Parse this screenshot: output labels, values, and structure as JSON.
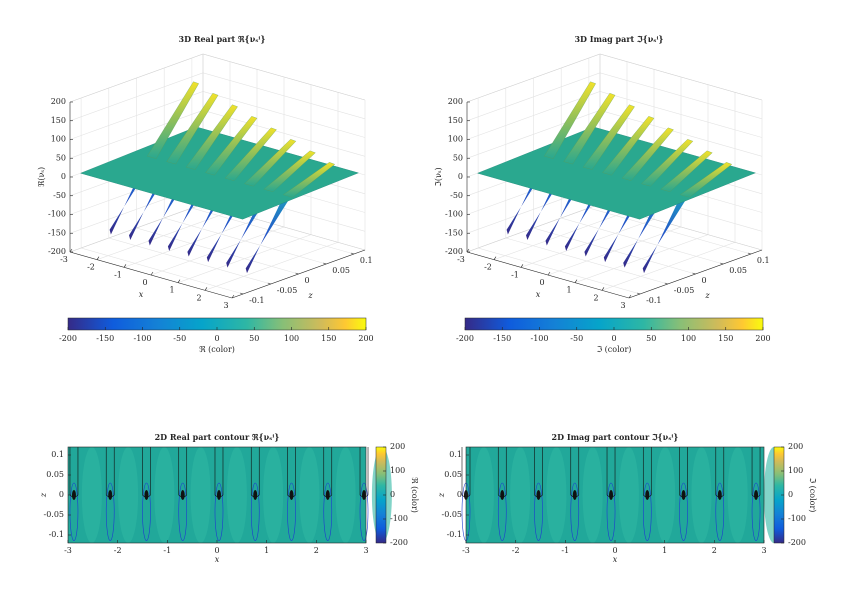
{
  "chart_data": [
    {
      "type": "surface3d",
      "title": "3D Real part ℜ{νₛⁱ}",
      "xlabel": "x",
      "ylabel": "z",
      "zlabel": "ℜ(νₛ)",
      "xlim": [
        -3,
        3
      ],
      "xticks": [
        -3,
        -2,
        -1,
        0,
        1,
        2,
        3
      ],
      "ylim": [
        -0.12,
        0.12
      ],
      "yticks": [
        -0.1,
        -0.05,
        0,
        0.05,
        0.1
      ],
      "zlim": [
        -200,
        200
      ],
      "zticks": [
        -200,
        -150,
        -100,
        -50,
        0,
        50,
        100,
        150,
        200
      ],
      "grid": true,
      "colorbar_label": "ℜ (color)",
      "clim": [
        -200,
        200
      ],
      "cticks": [
        -200,
        -150,
        -100,
        -50,
        0,
        50,
        100,
        150,
        200
      ]
    },
    {
      "type": "surface3d",
      "title": "3D Imag part ℑ{νₛⁱ}",
      "xlabel": "x",
      "ylabel": "z",
      "zlabel": "ℑ(νₛ)",
      "xlim": [
        -3,
        3
      ],
      "xticks": [
        -3,
        -2,
        -1,
        0,
        1,
        2,
        3
      ],
      "ylim": [
        -0.12,
        0.12
      ],
      "yticks": [
        -0.1,
        -0.05,
        0,
        0.05,
        0.1
      ],
      "zlim": [
        -200,
        200
      ],
      "zticks": [
        -200,
        -150,
        -100,
        -50,
        0,
        50,
        100,
        150,
        200
      ],
      "grid": true,
      "colorbar_label": "ℑ (color)",
      "clim": [
        -200,
        200
      ],
      "cticks": [
        -200,
        -150,
        -100,
        -50,
        0,
        50,
        100,
        150,
        200
      ]
    },
    {
      "type": "contour",
      "title": "2D Real part contour ℜ{νₛⁱ}",
      "xlabel": "x",
      "ylabel": "z",
      "xlim": [
        -3,
        3
      ],
      "xticks": [
        -3,
        -2,
        -1,
        0,
        1,
        2,
        3
      ],
      "ylim": [
        -0.12,
        0.12
      ],
      "yticks": [
        -0.1,
        -0.05,
        0,
        0.05,
        0.1
      ],
      "colorbar_label": "ℜ (color)",
      "clim": [
        -200,
        200
      ],
      "cticks": [
        -200,
        -100,
        0,
        100,
        200
      ]
    },
    {
      "type": "contour",
      "title": "2D Imag part contour ℑ{νₛⁱ}",
      "xlabel": "x",
      "ylabel": "z",
      "xlim": [
        -3,
        3
      ],
      "xticks": [
        -3,
        -2,
        -1,
        0,
        1,
        2,
        3
      ],
      "ylim": [
        -0.12,
        0.12
      ],
      "yticks": [
        -0.1,
        -0.05,
        0,
        0.05,
        0.1
      ],
      "colorbar_label": "ℑ (color)",
      "clim": [
        -200,
        200
      ],
      "cticks": [
        -200,
        -100,
        0,
        100,
        200
      ]
    }
  ]
}
